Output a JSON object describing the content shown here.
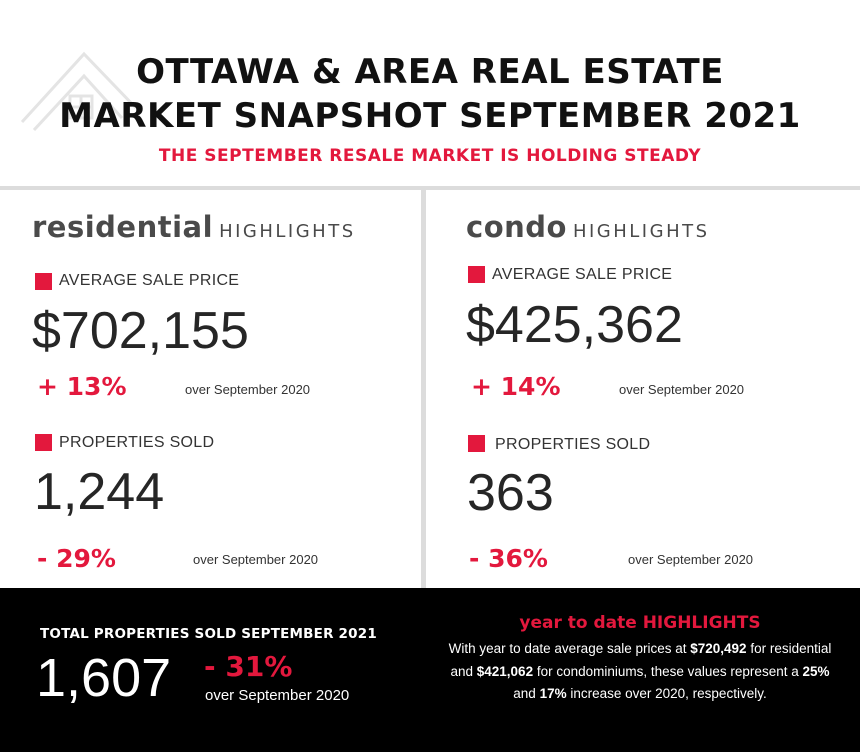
{
  "title_line1": "OTTAWA & AREA REAL ESTATE",
  "title_line2": "MARKET SNAPSHOT SEPTEMBER 2021",
  "subtitle": "THE SEPTEMBER RESALE MARKET IS HOLDING STEADY",
  "logo_icon": "house-outline-icon",
  "colors": {
    "accent": "#e3183d",
    "text": "#262626",
    "footer_bg": "#000000",
    "divider": "#dcdcdc"
  },
  "residential": {
    "heading_big": "residential",
    "heading_small": "HIGHLIGHTS",
    "avg_label": "AVERAGE SALE PRICE",
    "avg_value": "$702,155",
    "avg_change": "+ 13%",
    "avg_over": "over September 2020",
    "sold_label": "PROPERTIES SOLD",
    "sold_value": "1,244",
    "sold_change": "- 29%",
    "sold_over": "over September 2020"
  },
  "condo": {
    "heading_big": "condo",
    "heading_small": "HIGHLIGHTS",
    "avg_label": "AVERAGE SALE PRICE",
    "avg_value": "$425,362",
    "avg_change": "+ 14%",
    "avg_over": "over September 2020",
    "sold_label": "PROPERTIES SOLD",
    "sold_value": "363",
    "sold_change": "- 36%",
    "sold_over": "over September 2020"
  },
  "total": {
    "label": "TOTAL PROPERTIES SOLD SEPTEMBER 2021",
    "value": "1,607",
    "change": "- 31%",
    "over": "over September 2020"
  },
  "ytd": {
    "title": "year to date HIGHLIGHTS",
    "t1": "With year to date average sale prices at ",
    "res_price": "$720,492",
    "t2": " for residential and ",
    "condo_price": "$421,062",
    "t3": " for condominiums, these values represent a ",
    "res_pct": "25%",
    "t4": " and ",
    "condo_pct": "17%",
    "t5": " increase over 2020, respectively."
  }
}
